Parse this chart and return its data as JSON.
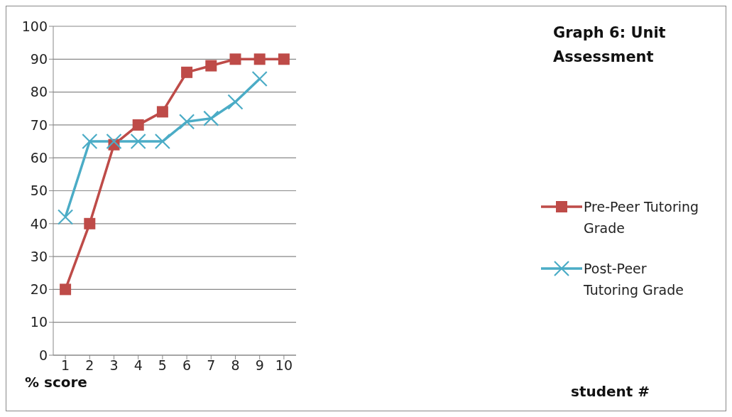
{
  "chart_data": {
    "type": "line",
    "title": "Graph 6: Unit Assessment",
    "annotations": [
      "% score",
      "student #"
    ],
    "categories": [
      "1",
      "2",
      "3",
      "4",
      "5",
      "6",
      "7",
      "8",
      "9",
      "10"
    ],
    "series": [
      {
        "name": "Pre-Peer Tutoring Grade",
        "color": "#be4b48",
        "marker": "square",
        "values": [
          20,
          40,
          64,
          70,
          74,
          86,
          88,
          90,
          90,
          90
        ]
      },
      {
        "name": "Post-Peer Tutoring   Grade",
        "color": "#4bacc6",
        "marker": "cross",
        "values": [
          42,
          65,
          65,
          65,
          65,
          71,
          72,
          77,
          84,
          null
        ]
      }
    ],
    "ylim": [
      0,
      100
    ],
    "yticks": [
      0,
      10,
      20,
      30,
      40,
      50,
      60,
      70,
      80,
      90,
      100
    ],
    "grid": "y",
    "legend": "right",
    "line_style": "solid"
  }
}
